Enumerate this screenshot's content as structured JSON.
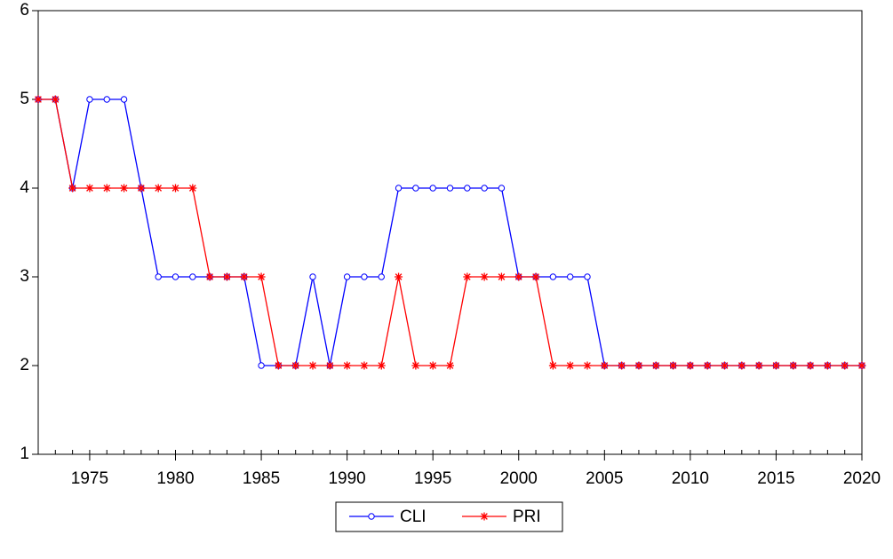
{
  "chart_data": {
    "type": "line",
    "x": [
      1972,
      1973,
      1974,
      1975,
      1976,
      1977,
      1978,
      1979,
      1980,
      1981,
      1982,
      1983,
      1984,
      1985,
      1986,
      1987,
      1988,
      1989,
      1990,
      1991,
      1992,
      1993,
      1994,
      1995,
      1996,
      1997,
      1998,
      1999,
      2000,
      2001,
      2002,
      2003,
      2004,
      2005,
      2006,
      2007,
      2008,
      2009,
      2010,
      2011,
      2012,
      2013,
      2014,
      2015,
      2016,
      2017,
      2018,
      2019,
      2020
    ],
    "series": [
      {
        "name": "CLI",
        "color": "#0000ff",
        "marker": "circle",
        "values": [
          5,
          5,
          4,
          5,
          5,
          5,
          4,
          3,
          3,
          3,
          3,
          3,
          3,
          2,
          2,
          2,
          3,
          2,
          3,
          3,
          3,
          4,
          4,
          4,
          4,
          4,
          4,
          4,
          3,
          3,
          3,
          3,
          3,
          2,
          2,
          2,
          2,
          2,
          2,
          2,
          2,
          2,
          2,
          2,
          2,
          2,
          2,
          2,
          2
        ]
      },
      {
        "name": "PRI",
        "color": "#ff0000",
        "marker": "star",
        "values": [
          5,
          5,
          4,
          4,
          4,
          4,
          4,
          4,
          4,
          4,
          3,
          3,
          3,
          3,
          2,
          2,
          2,
          2,
          2,
          2,
          2,
          3,
          2,
          2,
          2,
          3,
          3,
          3,
          3,
          3,
          2,
          2,
          2,
          2,
          2,
          2,
          2,
          2,
          2,
          2,
          2,
          2,
          2,
          2,
          2,
          2,
          2,
          2,
          2
        ]
      }
    ],
    "xlim": [
      1972,
      2020
    ],
    "xticks": [
      1975,
      1980,
      1985,
      1990,
      1995,
      2000,
      2005,
      2010,
      2015,
      2020
    ],
    "ylim": [
      1,
      6
    ],
    "yticks": [
      1,
      2,
      3,
      4,
      5,
      6
    ],
    "legend": "bottom"
  }
}
